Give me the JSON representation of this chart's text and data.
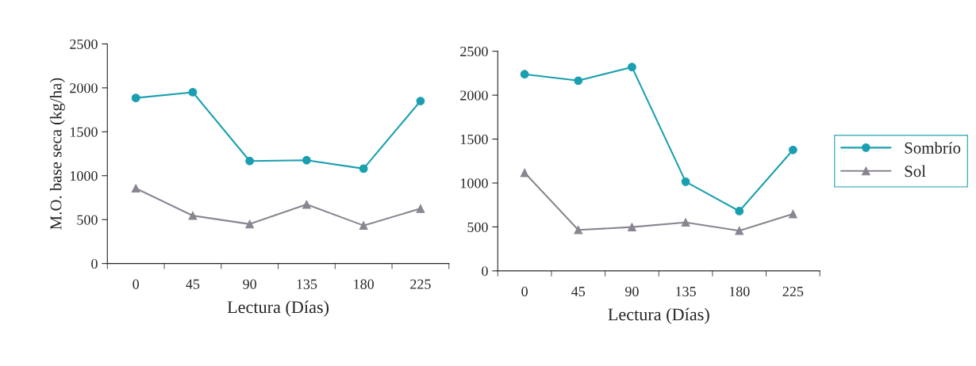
{
  "chart_data": [
    {
      "type": "line",
      "categories": [
        "0",
        "45",
        "90",
        "135",
        "180",
        "225"
      ],
      "xlabel": "Lectura (Días)",
      "ylabel": "M.O. base seca (kg/ha)",
      "ylim": [
        0,
        2500
      ],
      "yticks": [
        0,
        500,
        1000,
        1500,
        2000,
        2500
      ],
      "grid": false,
      "legend": false,
      "series": [
        {
          "color": "#1a9fb0",
          "marker": "circle",
          "values": [
            1885,
            1950,
            1167,
            1176,
            1080,
            1850
          ]
        },
        {
          "color": "#8a8590",
          "marker": "triangle",
          "values": [
            856,
            545,
            449,
            673,
            433,
            625
          ]
        }
      ]
    },
    {
      "type": "line",
      "categories": [
        "0",
        "45",
        "90",
        "135",
        "180",
        "225"
      ],
      "xlabel": "Lectura (Días)",
      "ylim": [
        0,
        2500
      ],
      "yticks": [
        0,
        500,
        1000,
        1500,
        2000,
        2500
      ],
      "grid": false,
      "legend": "right",
      "series": [
        {
          "name": "Sombrío",
          "color": "#1a9fb0",
          "marker": "circle",
          "values": [
            2238,
            2165,
            2320,
            1015,
            680,
            1376
          ]
        },
        {
          "name": "Sol",
          "color": "#8a8590",
          "marker": "triangle",
          "values": [
            1117,
            466,
            498,
            552,
            457,
            648
          ]
        }
      ]
    }
  ]
}
